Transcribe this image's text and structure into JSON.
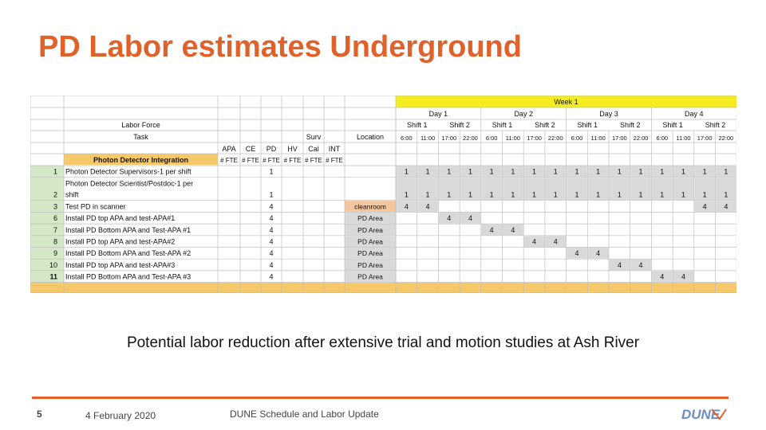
{
  "slide": {
    "title": "PD Labor estimates Underground",
    "caption": "Potential labor reduction after extensive trial and motion studies at Ash River",
    "page_number": "5",
    "date": "4 February 2020",
    "footer_title": "DUNE Schedule and Labor Update",
    "logo_text": "DUNE"
  },
  "colors": {
    "title": "#e0622a",
    "accent_line": "#e0622a",
    "week_header": "#f5ec1f",
    "section_header": "#f5c86a",
    "row_number_green": "#d4e7c6",
    "location_orange": "#f5c59e",
    "grid_gray": "#d9d9d9",
    "logo_blue": "#6a8cc2"
  },
  "table": {
    "week_label": "Week 1",
    "days": [
      "Day 1",
      "Day 2",
      "Day 3",
      "Day 4"
    ],
    "shifts": [
      "Shift 1",
      "Shift 2",
      "Shift 1",
      "Shift 2",
      "Shift 1",
      "Shift 2",
      "Shift 1",
      "Shift 2"
    ],
    "times": [
      "6:00",
      "11:00",
      "17:00",
      "22:00",
      "6:00",
      "11:00",
      "17:00",
      "22:00",
      "6:00",
      "11:00",
      "17:00",
      "22:00",
      "6:00",
      "11:00",
      "17:00",
      "22:00"
    ],
    "header_labor_force": "Labor Force",
    "header_task": "Task",
    "header_surv": "Surv",
    "header_location": "Location",
    "role_columns": [
      "APA",
      "CE",
      "PD",
      "HV",
      "Cal",
      "INT"
    ],
    "fte_label": "# FTE",
    "section_title": "Photon Detector Integration",
    "rows": [
      {
        "num": "1",
        "task": [
          "Photon Detector Supervisors-1 per shift"
        ],
        "pd": "1",
        "location": "",
        "loc_style": "none",
        "cells": [
          "1",
          "1",
          "1",
          "1",
          "1",
          "1",
          "1",
          "1",
          "1",
          "1",
          "1",
          "1",
          "1",
          "1",
          "1",
          "1"
        ]
      },
      {
        "num": "2",
        "task": [
          "Photon Detector Scientist/Postdoc-1 per",
          "shift"
        ],
        "pd": "1",
        "location": "",
        "loc_style": "none",
        "cells": [
          "1",
          "1",
          "1",
          "1",
          "1",
          "1",
          "1",
          "1",
          "1",
          "1",
          "1",
          "1",
          "1",
          "1",
          "1",
          "1"
        ]
      },
      {
        "num": "3",
        "task": [
          "Test PD in scanner"
        ],
        "pd": "4",
        "location": "cleanroom",
        "loc_style": "orange",
        "cells": [
          "4",
          "4",
          "",
          "",
          "",
          "",
          "",
          "",
          "",
          "",
          "",
          "",
          "",
          "",
          "4",
          "4"
        ]
      },
      {
        "num": "6",
        "task": [
          "Install PD top APA and test-APA#1"
        ],
        "pd": "4",
        "location": "PD Area",
        "loc_style": "gray",
        "cells": [
          "",
          "",
          "4",
          "4",
          "",
          "",
          "",
          "",
          "",
          "",
          "",
          "",
          "",
          "",
          "",
          ""
        ]
      },
      {
        "num": "7",
        "task": [
          "Install PD Bottom APA and Test-APA #1"
        ],
        "pd": "4",
        "location": "PD Area",
        "loc_style": "gray",
        "cells": [
          "",
          "",
          "",
          "",
          "4",
          "4",
          "",
          "",
          "",
          "",
          "",
          "",
          "",
          "",
          "",
          ""
        ]
      },
      {
        "num": "8",
        "task": [
          "Install PD top APA and test-APA#2"
        ],
        "pd": "4",
        "location": "PD Area",
        "loc_style": "gray",
        "cells": [
          "",
          "",
          "",
          "",
          "",
          "",
          "4",
          "4",
          "",
          "",
          "",
          "",
          "",
          "",
          "",
          ""
        ]
      },
      {
        "num": "9",
        "task": [
          "Install PD Bottom APA and Test-APA #2"
        ],
        "pd": "4",
        "location": "PD Area",
        "loc_style": "gray",
        "cells": [
          "",
          "",
          "",
          "",
          "",
          "",
          "",
          "",
          "4",
          "4",
          "",
          "",
          "",
          "",
          "",
          ""
        ]
      },
      {
        "num": "10",
        "task": [
          "Install PD top APA and test-APA#3"
        ],
        "pd": "4",
        "location": "PD Area",
        "loc_style": "gray",
        "cells": [
          "",
          "",
          "",
          "",
          "",
          "",
          "",
          "",
          "",
          "",
          "4",
          "4",
          "",
          "",
          "",
          ""
        ]
      },
      {
        "num": "11",
        "task": [
          "Install PD Bottom APA and Test-APA #3"
        ],
        "pd": "4",
        "location": "PD Area",
        "loc_style": "gray",
        "cells": [
          "",
          "",
          "",
          "",
          "",
          "",
          "",
          "",
          "",
          "",
          "",
          "",
          "4",
          "4",
          "",
          ""
        ]
      }
    ]
  }
}
